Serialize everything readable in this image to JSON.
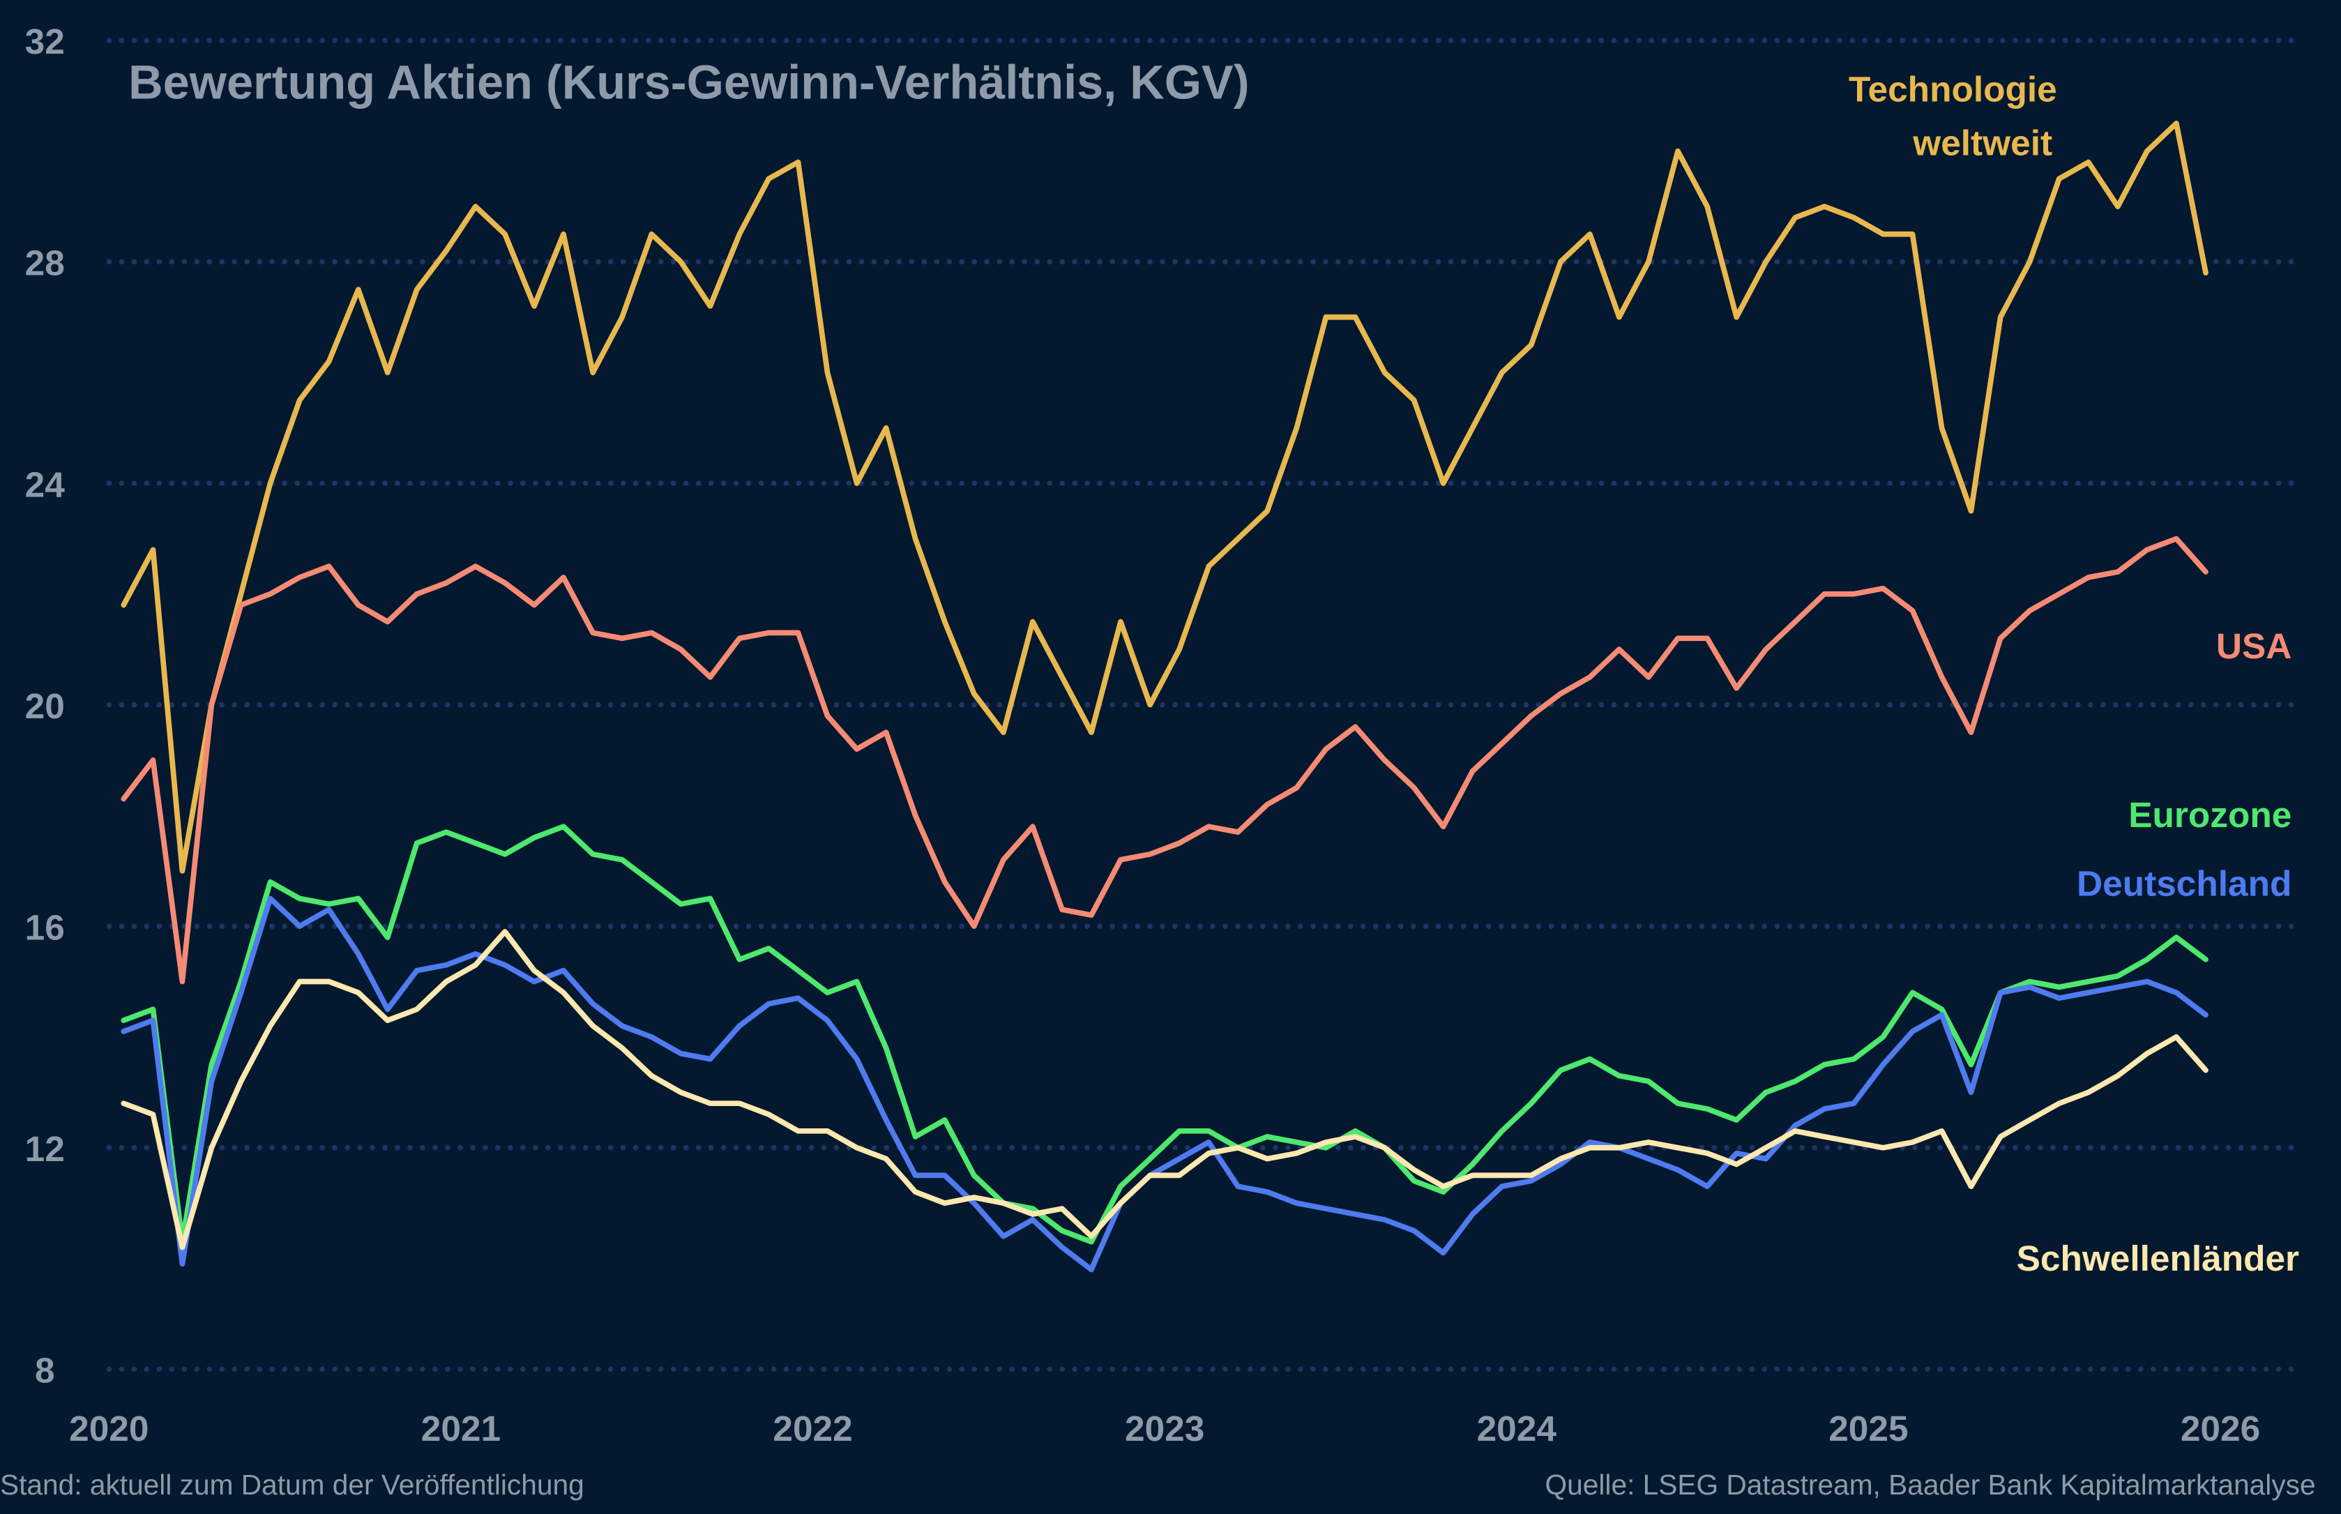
{
  "chart_data": {
    "type": "line",
    "title": "Bewertung Aktien (Kurs-Gewinn-Verhältnis, KGV)",
    "xlabel": "",
    "ylabel": "",
    "ylim": [
      8,
      32
    ],
    "yticks": [
      "32",
      "28",
      "24",
      "20",
      "16",
      "12",
      "8"
    ],
    "xlim": [
      "2020-01",
      "2026-01"
    ],
    "xticks": [
      "2020",
      "2021",
      "2022",
      "2023",
      "2024",
      "2025",
      "2026"
    ],
    "grid": "horizontal dotted",
    "x_start": "2020-01",
    "x_frequency": "monthly",
    "series": [
      {
        "name": "Technologie weltweit",
        "label_lines": [
          "Technologie",
          "weltweit"
        ],
        "color": "#e8b84f",
        "values": [
          21.8,
          22.8,
          17.0,
          20.0,
          22.0,
          24.0,
          25.5,
          26.2,
          27.5,
          26.0,
          27.5,
          28.2,
          29.0,
          28.5,
          27.2,
          28.5,
          26.0,
          27.0,
          28.5,
          28.0,
          27.2,
          28.5,
          29.5,
          29.8,
          26.0,
          24.0,
          25.0,
          23.0,
          21.5,
          20.2,
          19.5,
          21.5,
          20.5,
          19.5,
          21.5,
          20.0,
          21.0,
          22.5,
          23.0,
          23.5,
          25.0,
          27.0,
          27.0,
          26.0,
          25.5,
          24.0,
          25.0,
          26.0,
          26.5,
          28.0,
          28.5,
          27.0,
          28.0,
          30.0,
          29.0,
          27.0,
          28.0,
          28.8,
          29.0,
          28.8,
          28.5,
          28.5,
          25.0,
          23.5,
          27.0,
          28.0,
          29.5,
          29.8,
          29.0,
          30.0,
          30.5,
          27.8
        ]
      },
      {
        "name": "USA",
        "label_lines": [
          "USA"
        ],
        "color": "#f58b74",
        "values": [
          18.3,
          19.0,
          15.0,
          20.0,
          21.8,
          22.0,
          22.3,
          22.5,
          21.8,
          21.5,
          22.0,
          22.2,
          22.5,
          22.2,
          21.8,
          22.3,
          21.3,
          21.2,
          21.3,
          21.0,
          20.5,
          21.2,
          21.3,
          21.3,
          19.8,
          19.2,
          19.5,
          18.0,
          16.8,
          16.0,
          17.2,
          17.8,
          16.3,
          16.2,
          17.2,
          17.3,
          17.5,
          17.8,
          17.7,
          18.2,
          18.5,
          19.2,
          19.6,
          19.0,
          18.5,
          17.8,
          18.8,
          19.3,
          19.8,
          20.2,
          20.5,
          21.0,
          20.5,
          21.2,
          21.2,
          20.3,
          21.0,
          21.5,
          22.0,
          22.0,
          22.1,
          21.7,
          20.5,
          19.5,
          21.2,
          21.7,
          22.0,
          22.3,
          22.4,
          22.8,
          23.0,
          22.4
        ]
      },
      {
        "name": "Eurozone",
        "label_lines": [
          "Eurozone"
        ],
        "color": "#4ee86e",
        "values": [
          14.3,
          14.5,
          10.3,
          13.5,
          15.0,
          16.8,
          16.5,
          16.4,
          16.5,
          15.8,
          17.5,
          17.7,
          17.5,
          17.3,
          17.6,
          17.8,
          17.3,
          17.2,
          16.8,
          16.4,
          16.5,
          15.4,
          15.6,
          15.2,
          14.8,
          15.0,
          13.8,
          12.2,
          12.5,
          11.5,
          11.0,
          10.9,
          10.5,
          10.3,
          11.3,
          11.8,
          12.3,
          12.3,
          12.0,
          12.2,
          12.1,
          12.0,
          12.3,
          12.0,
          11.4,
          11.2,
          11.7,
          12.3,
          12.8,
          13.4,
          13.6,
          13.3,
          13.2,
          12.8,
          12.7,
          12.5,
          13.0,
          13.2,
          13.5,
          13.6,
          14.0,
          14.8,
          14.5,
          13.5,
          14.8,
          15.0,
          14.9,
          15.0,
          15.1,
          15.4,
          15.8,
          15.4
        ]
      },
      {
        "name": "Deutschland",
        "label_lines": [
          "Deutschland"
        ],
        "color": "#4f7bf0",
        "values": [
          14.1,
          14.3,
          9.9,
          13.2,
          14.8,
          16.5,
          16.0,
          16.3,
          15.5,
          14.5,
          15.2,
          15.3,
          15.5,
          15.3,
          15.0,
          15.2,
          14.6,
          14.2,
          14.0,
          13.7,
          13.6,
          14.2,
          14.6,
          14.7,
          14.3,
          13.6,
          12.5,
          11.5,
          11.5,
          11.0,
          10.4,
          10.7,
          10.2,
          9.8,
          11.0,
          11.5,
          11.8,
          12.1,
          11.3,
          11.2,
          11.0,
          10.9,
          10.8,
          10.7,
          10.5,
          10.1,
          10.8,
          11.3,
          11.4,
          11.7,
          12.1,
          12.0,
          11.8,
          11.6,
          11.3,
          11.9,
          11.8,
          12.4,
          12.7,
          12.8,
          13.5,
          14.1,
          14.4,
          13.0,
          14.8,
          14.9,
          14.7,
          14.8,
          14.9,
          15.0,
          14.8,
          14.4
        ]
      },
      {
        "name": "Schwellenländer",
        "label_lines": [
          "Schwellenländer"
        ],
        "color": "#fde8b0",
        "values": [
          12.8,
          12.6,
          10.2,
          12.0,
          13.2,
          14.2,
          15.0,
          15.0,
          14.8,
          14.3,
          14.5,
          15.0,
          15.3,
          15.9,
          15.2,
          14.8,
          14.2,
          13.8,
          13.3,
          13.0,
          12.8,
          12.8,
          12.6,
          12.3,
          12.3,
          12.0,
          11.8,
          11.2,
          11.0,
          11.1,
          11.0,
          10.8,
          10.9,
          10.4,
          11.0,
          11.5,
          11.5,
          11.9,
          12.0,
          11.8,
          11.9,
          12.1,
          12.2,
          12.0,
          11.6,
          11.3,
          11.5,
          11.5,
          11.5,
          11.8,
          12.0,
          12.0,
          12.1,
          12.0,
          11.9,
          11.7,
          12.0,
          12.3,
          12.2,
          12.1,
          12.0,
          12.1,
          12.3,
          11.3,
          12.2,
          12.5,
          12.8,
          13.0,
          13.3,
          13.7,
          14.0,
          13.4
        ]
      }
    ],
    "annotations": {
      "stand": "Stand: aktuell zum Datum der Veröffentlichung",
      "source": "Quelle: LSEG Datastream, Baader Bank Kapitalmarktanalyse"
    }
  },
  "colors": {
    "background": "#04192f",
    "grid": "#1d3566",
    "text": "#8e9aa8"
  }
}
